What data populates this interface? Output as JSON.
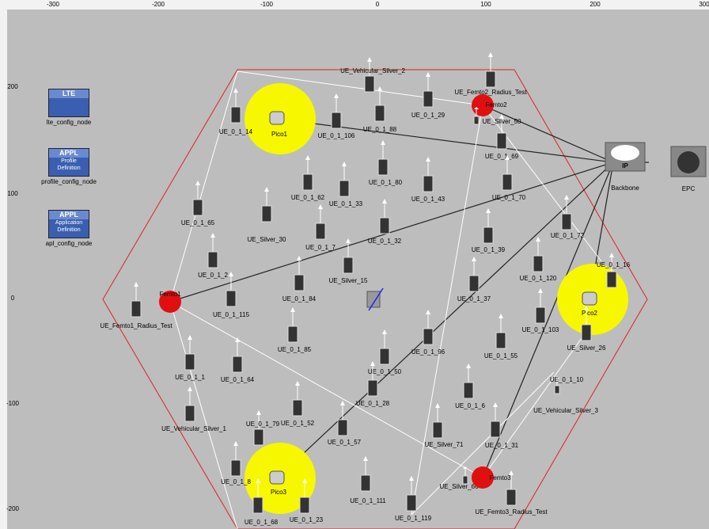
{
  "ruler": {
    "top": [
      -300,
      -200,
      -100,
      0,
      100,
      200,
      300
    ],
    "left": [
      200,
      100,
      0,
      -100,
      -200
    ]
  },
  "config_nodes": [
    {
      "badge": "LTE",
      "caption": "",
      "label": "lte_config_node"
    },
    {
      "badge": "APPL",
      "caption": "Profile Definition",
      "label": "profile_config_node"
    },
    {
      "badge": "APPL",
      "caption": "Application Definition",
      "label": "apl_config_node"
    }
  ],
  "nodes": [
    {
      "label": "UE_0_1_14"
    },
    {
      "label": "Pico1"
    },
    {
      "label": "UE_Vehicular_Silver_2"
    },
    {
      "label": "UE_0_1_88"
    },
    {
      "label": "UE_0_1_106"
    },
    {
      "label": "UE_0_1_29"
    },
    {
      "label": "UE_Femto2_Radius_Test"
    },
    {
      "label": "Femto2"
    },
    {
      "label": "UE_Silver_50"
    },
    {
      "label": "UE_0_1_69"
    },
    {
      "label": "UE_0_1_62"
    },
    {
      "label": "UE_0_1_33"
    },
    {
      "label": "UE_0_1_80"
    },
    {
      "label": "UE_0_1_43"
    },
    {
      "label": "UE_0_1_70"
    },
    {
      "label": "UE_0_1_65"
    },
    {
      "label": "UE_Silver_30"
    },
    {
      "label": "UE_0_1_7"
    },
    {
      "label": "UE_0_1_32"
    },
    {
      "label": "UE_0_1_72"
    },
    {
      "label": "UE_0_1_39"
    },
    {
      "label": "UE_0_1_2"
    },
    {
      "label": "UE_Silver_15"
    },
    {
      "label": "UE_0_1_120"
    },
    {
      "label": "UE_0_1_16"
    },
    {
      "label": "UE_0_1_84"
    },
    {
      "label": "UE_0_1_37"
    },
    {
      "label": "UE_0_1_115"
    },
    {
      "label": "UE_Femto1_Radius_Test"
    },
    {
      "label": "Femto1"
    },
    {
      "label": "Pico2"
    },
    {
      "label": "UE_0_1_103"
    },
    {
      "label": "UE_Silver_26"
    },
    {
      "label": "UE_0_1_85"
    },
    {
      "label": "UE_0_1_96"
    },
    {
      "label": "UE_0_1_55"
    },
    {
      "label": "UE_0_1_1"
    },
    {
      "label": "UE_0_1_64"
    },
    {
      "label": "UE_0_1_50"
    },
    {
      "label": "UE_0_1_10"
    },
    {
      "label": "UE_Vehicular_Silver_3"
    },
    {
      "label": "UE_0_1_28"
    },
    {
      "label": "UE_0_1_6"
    },
    {
      "label": "UE_Vehicular_Silver_1"
    },
    {
      "label": "UE_0_1_79"
    },
    {
      "label": "UE_0_1_52"
    },
    {
      "label": "UE_0_1_57"
    },
    {
      "label": "UE_Silver_71"
    },
    {
      "label": "UE_0_1_31"
    },
    {
      "label": "UE_0_1_8"
    },
    {
      "label": "Pico3"
    },
    {
      "label": "UE_0_1_111"
    },
    {
      "label": "UE_0_1_119"
    },
    {
      "label": "UE_Silver_66"
    },
    {
      "label": "Femto3"
    },
    {
      "label": "UE_Femto3_Radius_Test"
    },
    {
      "label": "UE_0_1_68"
    },
    {
      "label": "UE_0_1_23"
    },
    {
      "label": "Backbone",
      "badge": "IP"
    },
    {
      "label": "EPC"
    }
  ]
}
